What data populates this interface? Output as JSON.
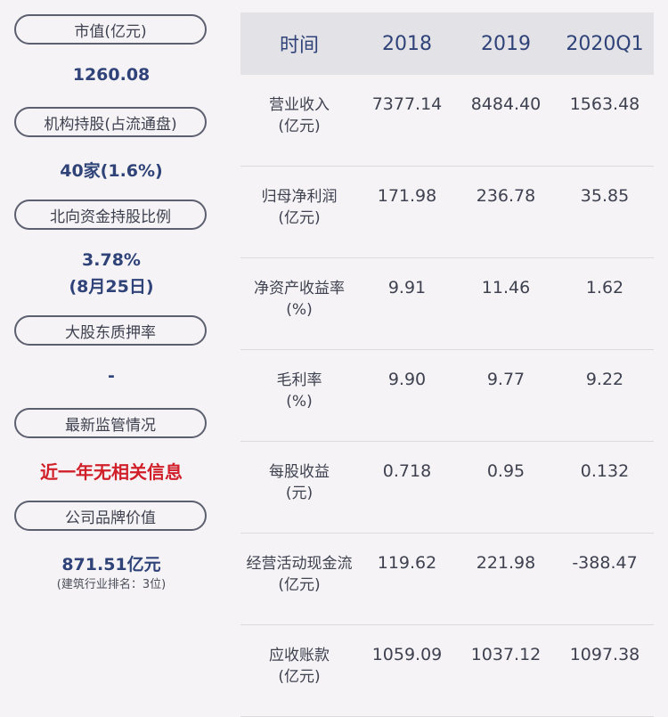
{
  "left_panel": {
    "market_cap": {
      "label": "市值(亿元)",
      "value": "1260.08"
    },
    "institutional": {
      "label": "机构持股(占流通盘)",
      "value": "40家(1.6%)"
    },
    "northbound": {
      "label": "北向资金持股比例",
      "value": "3.78%",
      "date": "(8月25日)"
    },
    "pledge": {
      "label": "大股东质押率",
      "value": "-"
    },
    "regulation": {
      "label": "最新监管情况",
      "value": "近一年无相关信息"
    },
    "brand": {
      "label": "公司品牌价值",
      "value": "871.51亿元",
      "note": "(建筑行业排名：3位)"
    }
  },
  "table": {
    "headers": [
      "时间",
      "2018",
      "2019",
      "2020Q1"
    ],
    "rows": [
      {
        "label": "营业收入",
        "unit": "(亿元)",
        "values": [
          "7377.14",
          "8484.40",
          "1563.48"
        ]
      },
      {
        "label": "归母净利润",
        "unit": "(亿元)",
        "values": [
          "171.98",
          "236.78",
          "35.85"
        ]
      },
      {
        "label": "净资产收益率",
        "unit": "(%)",
        "values": [
          "9.91",
          "11.46",
          "1.62"
        ]
      },
      {
        "label": "毛利率",
        "unit": "(%)",
        "values": [
          "9.90",
          "9.77",
          "9.22"
        ]
      },
      {
        "label": "每股收益",
        "unit": "(元)",
        "values": [
          "0.718",
          "0.95",
          "0.132"
        ]
      },
      {
        "label": "经营活动现金流",
        "unit": "(亿元)",
        "values": [
          "119.62",
          "221.98",
          "-388.47"
        ]
      },
      {
        "label": "应收账款",
        "unit": "(亿元)",
        "values": [
          "1059.09",
          "1037.12",
          "1097.38"
        ]
      }
    ]
  },
  "colors": {
    "value_blue": "#2f4379",
    "alert_red": "#d11f2a",
    "header_bg": "#e3e2e6",
    "page_bg": "#f5f3f5"
  }
}
